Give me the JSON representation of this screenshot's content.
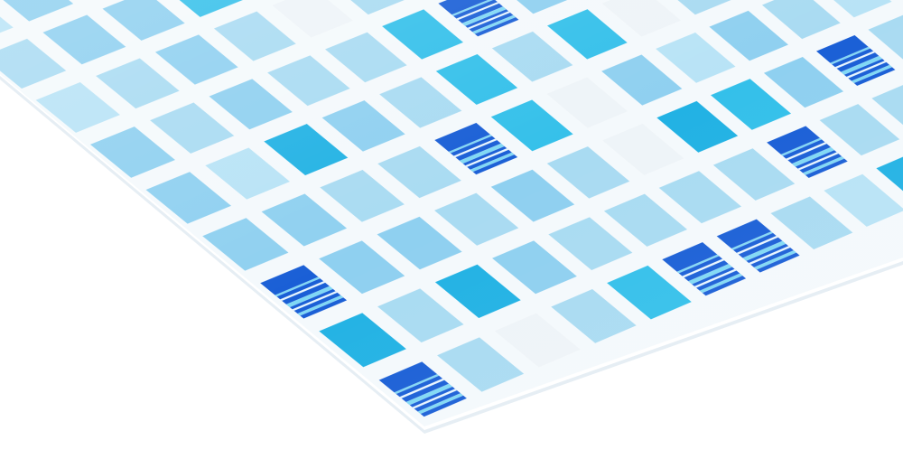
{
  "photo": {
    "subject": "mosaic-tile-panel",
    "colors": {
      "background": "#ffffff",
      "grout": "#f4f9fc",
      "panel_edge": "#e6eef4",
      "tile_pale": "#a9dbf2",
      "tile_sky": "#8fd0f0",
      "tile_light": "#b8e3f6",
      "tile_cyan": "#34c0ea",
      "tile_cyan_deep": "#22b2e4",
      "tile_white": "#eef4f8",
      "stripe_base": "#1a5fd6",
      "stripe_line": "#7fd8f5",
      "stripe_white": "#e8f6ff"
    },
    "tile_palette_names": [
      "pale-blue",
      "sky-blue",
      "light-blue",
      "cyan",
      "deep-cyan",
      "white",
      "striped-blue"
    ]
  }
}
